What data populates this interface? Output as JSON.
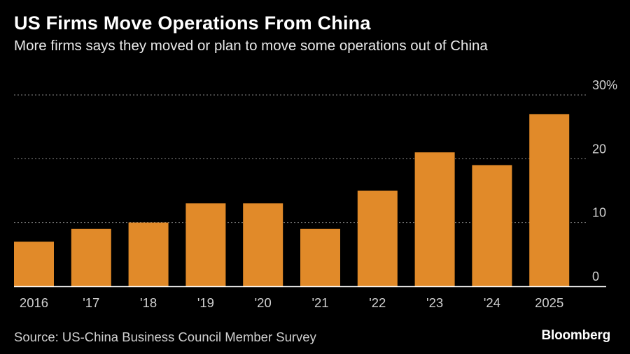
{
  "header": {
    "title": "US Firms Move Operations From China",
    "subtitle": "More firms says they moved or plan to move some operations out of China"
  },
  "footer": {
    "source": "Source: US-China Business Council Member Survey",
    "logo": "Bloomberg"
  },
  "chart_data": {
    "type": "bar",
    "title": "US Firms Move Operations From China",
    "subtitle": "More firms says they moved or plan to move some operations out of China",
    "xlabel": "",
    "ylabel": "",
    "categories": [
      "2016",
      "'17",
      "'18",
      "'19",
      "'20",
      "'21",
      "'22",
      "'23",
      "'24",
      "2025"
    ],
    "values": [
      7,
      9,
      10,
      13,
      13,
      9,
      15,
      21,
      19,
      27
    ],
    "ylim": [
      0,
      30
    ],
    "yticks": [
      0,
      10,
      20,
      30
    ],
    "ytick_labels": [
      "0",
      "10",
      "20",
      "30%"
    ],
    "y_axis_side": "right",
    "grid": true,
    "bar_color": "#E18A29",
    "gridline_color": "#8c8c8c",
    "baseline_color": "#ffffff"
  }
}
